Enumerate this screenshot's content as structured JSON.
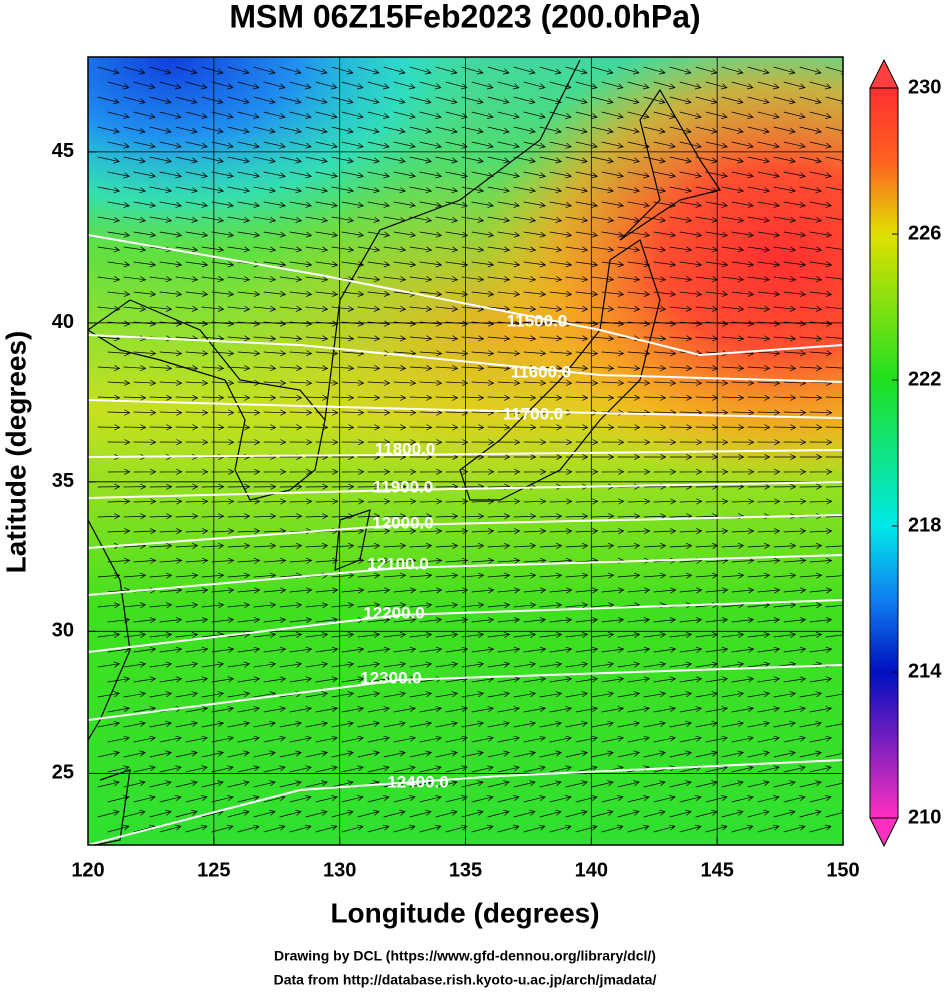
{
  "chart_data": {
    "type": "map",
    "title": "MSM 06Z15Feb2023 (200.0hPa)",
    "x_label": "Longitude (degrees)",
    "y_label": "Latitude  (degrees)",
    "credits": [
      "Drawing by DCL (https://www.gfd-dennou.org/library/dcl/)",
      "Data from http://database.rish.kyoto-u.ac.jp/arch/jmadata/"
    ],
    "projection": "mercator",
    "xlim": [
      120,
      150
    ],
    "xticks": [
      120,
      125,
      130,
      135,
      140,
      145,
      150
    ],
    "ylim": [
      22.4,
      47.6
    ],
    "yticks": [
      25,
      30,
      35,
      40,
      45
    ],
    "grid": true,
    "colorbar": {
      "lim": [
        210,
        230
      ],
      "ticks": [
        210,
        214,
        218,
        222,
        226,
        230
      ]
    },
    "contours": [
      {
        "value": 11500,
        "label": "11500.0"
      },
      {
        "value": 11600,
        "label": "11600.0"
      },
      {
        "value": 11700,
        "label": "11700.0"
      },
      {
        "value": 11800,
        "label": "11800.0"
      },
      {
        "value": 11900,
        "label": "11900.0"
      },
      {
        "value": 12000,
        "label": "12000.0"
      },
      {
        "value": 12100,
        "label": "12100.0"
      },
      {
        "value": 12200,
        "label": "12200.0"
      },
      {
        "value": 12300,
        "label": "12300.0"
      },
      {
        "value": 12400,
        "label": "12400.0"
      }
    ],
    "contour_color": "#ffffff"
  }
}
